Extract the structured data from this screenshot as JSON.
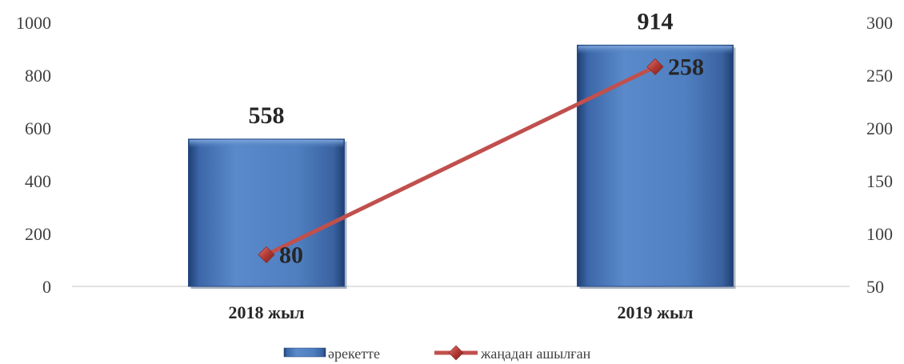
{
  "chart_data": {
    "type": "bar",
    "categories": [
      "2018 жыл",
      "2019 жыл"
    ],
    "series": [
      {
        "name": "әрекетте",
        "type": "bar",
        "axis": "left",
        "values": [
          558,
          914
        ],
        "color": "#4F81BD"
      },
      {
        "name": "жаңадан ашылған",
        "type": "line",
        "axis": "right",
        "values": [
          80,
          258
        ],
        "color": "#C0504D"
      }
    ],
    "y_left": {
      "min": 0,
      "max": 1000,
      "ticks": [
        0,
        200,
        400,
        600,
        800,
        1000
      ]
    },
    "y_right": {
      "min": 50,
      "max": 300,
      "ticks": [
        50,
        100,
        150,
        200,
        250,
        300
      ]
    },
    "legend_position": "bottom",
    "grid": false
  }
}
